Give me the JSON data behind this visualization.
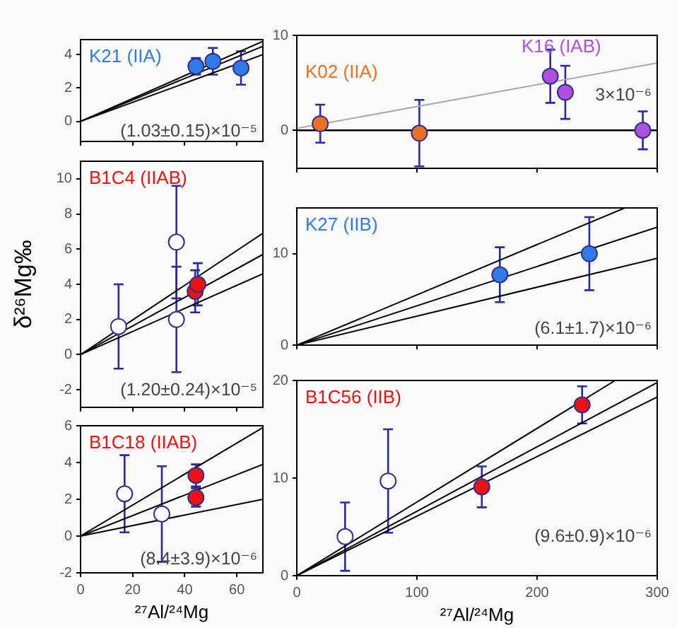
{
  "chart_data": [
    {
      "type": "scatter",
      "xlim": [
        0,
        70
      ],
      "xticks": [
        0,
        20,
        40,
        60
      ],
      "ylim": [
        -1.2,
        4.9
      ],
      "yticks": [
        0,
        2,
        4
      ],
      "tick_labels": "y",
      "marker": "circle",
      "annotations": [
        "(1.03±0.15)×10⁻⁵"
      ],
      "series": [
        {
          "type": "line",
          "color": "#000000",
          "marker": "none",
          "x": [
            0,
            70
          ],
          "values": [
            0,
            4.8
          ]
        },
        {
          "type": "line",
          "color": "#000000",
          "marker": "none",
          "x": [
            0,
            70
          ],
          "values": [
            0,
            4.5
          ]
        },
        {
          "type": "line",
          "color": "#000000",
          "marker": "none",
          "x": [
            0,
            70
          ],
          "values": [
            0,
            4.0
          ]
        },
        {
          "name": "K21 (IIA)",
          "color": "#2f7be8",
          "x": [
            44.3,
            50.8,
            61.6
          ],
          "values": [
            3.3,
            3.6,
            3.2
          ],
          "errors": [
            0.5,
            0.8,
            1.0
          ]
        }
      ]
    },
    {
      "type": "scatter",
      "xlim": [
        0,
        70
      ],
      "xticks": [
        0,
        20,
        40,
        60
      ],
      "ylim": [
        -3,
        11
      ],
      "yticks": [
        -2,
        0,
        2,
        4,
        6,
        8,
        10
      ],
      "tick_labels": "y",
      "ylabel": "δ²⁶Mg‰",
      "marker": "circle",
      "annotations": [
        "(1.20±0.24)×10⁻⁵"
      ],
      "series": [
        {
          "type": "line",
          "color": "#000000",
          "marker": "none",
          "x": [
            0,
            70
          ],
          "values": [
            0,
            6.9
          ]
        },
        {
          "type": "line",
          "color": "#000000",
          "marker": "none",
          "x": [
            0,
            70
          ],
          "values": [
            0,
            5.7
          ]
        },
        {
          "type": "line",
          "color": "#000000",
          "marker": "none",
          "x": [
            0,
            70
          ],
          "values": [
            0,
            4.6
          ]
        },
        {
          "color": "#ffffff",
          "x": [
            14.6,
            36.8,
            36.8
          ],
          "values": [
            1.6,
            6.4,
            2.0
          ],
          "errors": [
            2.4,
            3.2,
            3.0
          ]
        },
        {
          "name": "B1C4 (IIAB)",
          "color": "#ee1111",
          "x": [
            44,
            45
          ],
          "values": [
            3.6,
            4.0
          ],
          "errors": [
            1.2,
            1.2
          ]
        }
      ]
    },
    {
      "type": "scatter",
      "xlim": [
        0,
        70
      ],
      "xticks": [
        0,
        20,
        40,
        60
      ],
      "ylim": [
        -2,
        6
      ],
      "yticks": [
        -2,
        0,
        2,
        4,
        6
      ],
      "xlabel": "²⁷Al/²⁴Mg",
      "marker": "circle",
      "annotations": [
        "(8.4±3.9)×10⁻⁶"
      ],
      "series": [
        {
          "type": "line",
          "color": "#000000",
          "marker": "none",
          "x": [
            0,
            70
          ],
          "values": [
            0,
            5.9
          ]
        },
        {
          "type": "line",
          "color": "#000000",
          "marker": "none",
          "x": [
            0,
            70
          ],
          "values": [
            0,
            3.9
          ]
        },
        {
          "type": "line",
          "color": "#000000",
          "marker": "none",
          "x": [
            0,
            70
          ],
          "values": [
            0,
            2.0
          ]
        },
        {
          "color": "#ffffff",
          "x": [
            16.9,
            31.2
          ],
          "values": [
            2.3,
            1.2
          ],
          "errors": [
            2.1,
            2.6
          ]
        },
        {
          "name": "B1C18 (IIAB)",
          "color": "#ee1111",
          "x": [
            44.3,
            44.3
          ],
          "values": [
            3.3,
            2.1
          ],
          "errors": [
            0.6,
            0.5
          ]
        }
      ]
    },
    {
      "type": "scatter",
      "xlim": [
        0,
        300
      ],
      "xticks": [
        0,
        100,
        200,
        300
      ],
      "ylim": [
        -4,
        10
      ],
      "yticks": [
        0,
        10
      ],
      "tick_labels": "y",
      "marker": "circle",
      "annotations": [
        "3×10⁻⁶"
      ],
      "ref_lines": [
        {
          "axis": "y",
          "value": 0,
          "color": "#000000"
        }
      ],
      "series": [
        {
          "type": "line",
          "color": "#aaaaaa",
          "marker": "none",
          "x": [
            0,
            300
          ],
          "values": [
            0.2,
            7.1
          ]
        },
        {
          "name": "K02 (IIA)",
          "color": "#f07020",
          "x": [
            19.5,
            102
          ],
          "values": [
            0.7,
            -0.3
          ],
          "errors": [
            2.0,
            3.5
          ]
        },
        {
          "name": "K16 (IAB)",
          "color": "#b050e0",
          "x": [
            211,
            223.5,
            288
          ],
          "values": [
            5.7,
            4.0,
            0.0
          ],
          "errors": [
            2.8,
            2.8,
            2.0
          ]
        }
      ]
    },
    {
      "type": "scatter",
      "xlim": [
        0,
        300
      ],
      "xticks": [
        0,
        100,
        200,
        300
      ],
      "ylim": [
        0,
        15
      ],
      "yticks": [
        0,
        10
      ],
      "tick_labels": "y",
      "marker": "circle",
      "annotations": [
        "(6.1±1.7)×10⁻⁶"
      ],
      "series": [
        {
          "type": "line",
          "color": "#000000",
          "marker": "none",
          "x": [
            0,
            273
          ],
          "values": [
            0,
            15
          ]
        },
        {
          "type": "line",
          "color": "#000000",
          "marker": "none",
          "x": [
            0,
            300
          ],
          "values": [
            0,
            12.9
          ]
        },
        {
          "type": "line",
          "color": "#000000",
          "marker": "none",
          "x": [
            0,
            300
          ],
          "values": [
            0,
            9.5
          ]
        },
        {
          "name": "K27 (IIB)",
          "color": "#2f7be8",
          "x": [
            169,
            243.5
          ],
          "values": [
            7.7,
            10.0
          ],
          "errors": [
            3.0,
            4.0
          ]
        }
      ]
    },
    {
      "type": "scatter",
      "xlim": [
        0,
        300
      ],
      "xticks": [
        0,
        100,
        200,
        300
      ],
      "ylim": [
        0,
        20
      ],
      "yticks": [
        0,
        10,
        20
      ],
      "xlabel": "²⁷Al/²⁴Mg",
      "marker": "circle",
      "annotations": [
        "(9.6±0.9)×10⁻⁶"
      ],
      "series": [
        {
          "type": "line",
          "color": "#000000",
          "marker": "none",
          "x": [
            0,
            265
          ],
          "values": [
            0,
            20
          ]
        },
        {
          "type": "line",
          "color": "#000000",
          "marker": "none",
          "x": [
            0,
            300
          ],
          "values": [
            0,
            19.8
          ]
        },
        {
          "type": "line",
          "color": "#000000",
          "marker": "none",
          "x": [
            0,
            300
          ],
          "values": [
            0,
            18.3
          ]
        },
        {
          "color": "#ffffff",
          "x": [
            40.2,
            76
          ],
          "values": [
            4.0,
            9.7
          ],
          "errors": [
            3.5,
            5.3
          ]
        },
        {
          "name": "B1C56 (IIB)",
          "color": "#ee1111",
          "x": [
            154,
            237.5
          ],
          "values": [
            9.1,
            17.5
          ],
          "errors": [
            2.1,
            1.9
          ]
        }
      ]
    }
  ]
}
